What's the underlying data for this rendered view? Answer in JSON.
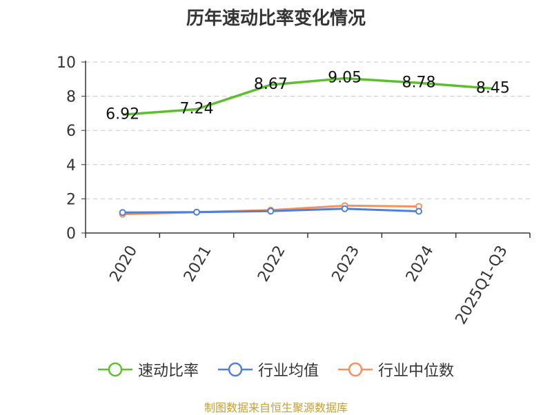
{
  "chart_data": {
    "type": "line",
    "title": "历年速动比率变化情况",
    "categories": [
      "2020",
      "2021",
      "2022",
      "2023",
      "2024",
      "2025Q1-Q3"
    ],
    "ylim": [
      0,
      10
    ],
    "yticks": [
      0,
      2,
      4,
      6,
      8,
      10
    ],
    "grid": true,
    "legend_position": "bottom",
    "series": [
      {
        "name": "速动比率",
        "color": "#5cc02c",
        "values": [
          6.92,
          7.24,
          8.67,
          9.05,
          8.78,
          8.45
        ],
        "show_labels": true
      },
      {
        "name": "行业均值",
        "color": "#4f7fd8",
        "values": [
          1.2,
          1.22,
          1.28,
          1.42,
          1.27,
          null
        ],
        "show_labels": false
      },
      {
        "name": "行业中位数",
        "color": "#f4925e",
        "values": [
          1.1,
          1.22,
          1.34,
          1.6,
          1.55,
          null
        ],
        "show_labels": false
      }
    ]
  },
  "source": "制图数据来自恒生聚源数据库"
}
